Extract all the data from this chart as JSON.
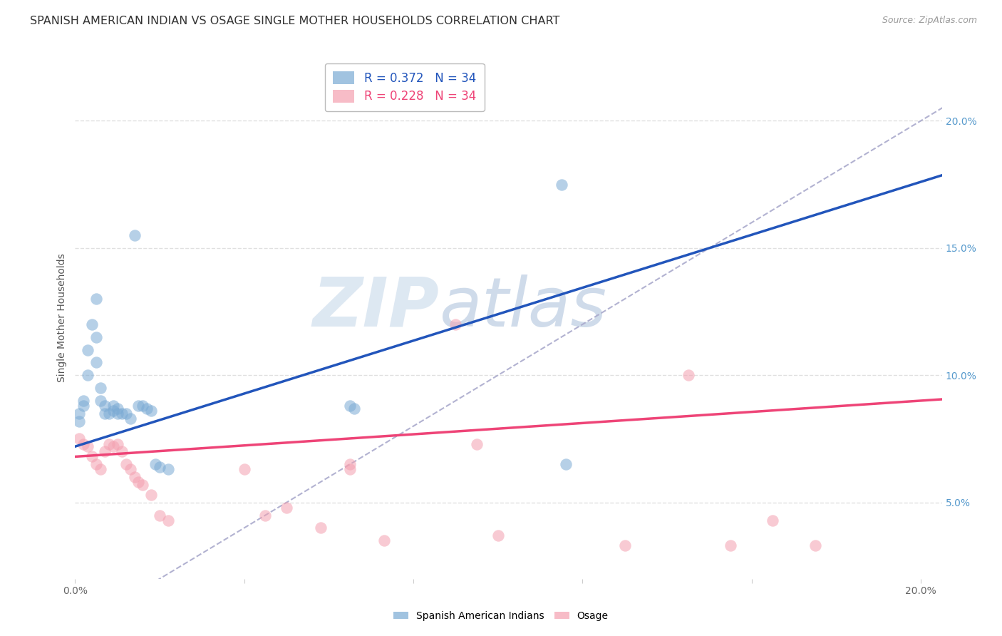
{
  "title": "SPANISH AMERICAN INDIAN VS OSAGE SINGLE MOTHER HOUSEHOLDS CORRELATION CHART",
  "source": "Source: ZipAtlas.com",
  "ylabel": "Single Mother Households",
  "R_blue": 0.372,
  "N_blue": 34,
  "R_pink": 0.228,
  "N_pink": 34,
  "xlim": [
    0.0,
    0.205
  ],
  "ylim": [
    0.02,
    0.225
  ],
  "blue_scatter_x": [
    0.001,
    0.001,
    0.002,
    0.002,
    0.003,
    0.003,
    0.004,
    0.005,
    0.005,
    0.005,
    0.006,
    0.006,
    0.007,
    0.007,
    0.008,
    0.009,
    0.009,
    0.01,
    0.01,
    0.011,
    0.012,
    0.013,
    0.014,
    0.015,
    0.016,
    0.017,
    0.018,
    0.019,
    0.02,
    0.022,
    0.065,
    0.066,
    0.115,
    0.116
  ],
  "blue_scatter_y": [
    0.085,
    0.082,
    0.09,
    0.088,
    0.1,
    0.11,
    0.12,
    0.105,
    0.115,
    0.13,
    0.09,
    0.095,
    0.085,
    0.088,
    0.085,
    0.086,
    0.088,
    0.085,
    0.087,
    0.085,
    0.085,
    0.083,
    0.155,
    0.088,
    0.088,
    0.087,
    0.086,
    0.065,
    0.064,
    0.063,
    0.088,
    0.087,
    0.175,
    0.065
  ],
  "pink_scatter_x": [
    0.001,
    0.002,
    0.003,
    0.004,
    0.005,
    0.006,
    0.007,
    0.008,
    0.009,
    0.01,
    0.011,
    0.012,
    0.013,
    0.014,
    0.015,
    0.016,
    0.018,
    0.02,
    0.022,
    0.04,
    0.045,
    0.05,
    0.058,
    0.065,
    0.065,
    0.073,
    0.09,
    0.095,
    0.1,
    0.13,
    0.145,
    0.155,
    0.165,
    0.175
  ],
  "pink_scatter_y": [
    0.075,
    0.073,
    0.072,
    0.068,
    0.065,
    0.063,
    0.07,
    0.073,
    0.072,
    0.073,
    0.07,
    0.065,
    0.063,
    0.06,
    0.058,
    0.057,
    0.053,
    0.045,
    0.043,
    0.063,
    0.045,
    0.048,
    0.04,
    0.065,
    0.063,
    0.035,
    0.12,
    0.073,
    0.037,
    0.033,
    0.1,
    0.033,
    0.043,
    0.033
  ],
  "blue_color": "#7aaad4",
  "pink_color": "#f4a0b0",
  "blue_line_color": "#2255bb",
  "pink_line_color": "#ee4477",
  "ref_line_color": "#AAAACC",
  "watermark_zip_color": "#dde4f0",
  "watermark_atlas_color": "#c8d8e8",
  "background_color": "#FFFFFF",
  "grid_color": "#DDDDDD",
  "title_color": "#333333",
  "title_fontsize": 11.5,
  "label_fontsize": 10,
  "legend_fontsize": 12,
  "right_tick_color": "#5599CC",
  "blue_line_intercept": 0.072,
  "blue_line_slope": 0.52,
  "pink_line_intercept": 0.068,
  "pink_line_slope": 0.11
}
